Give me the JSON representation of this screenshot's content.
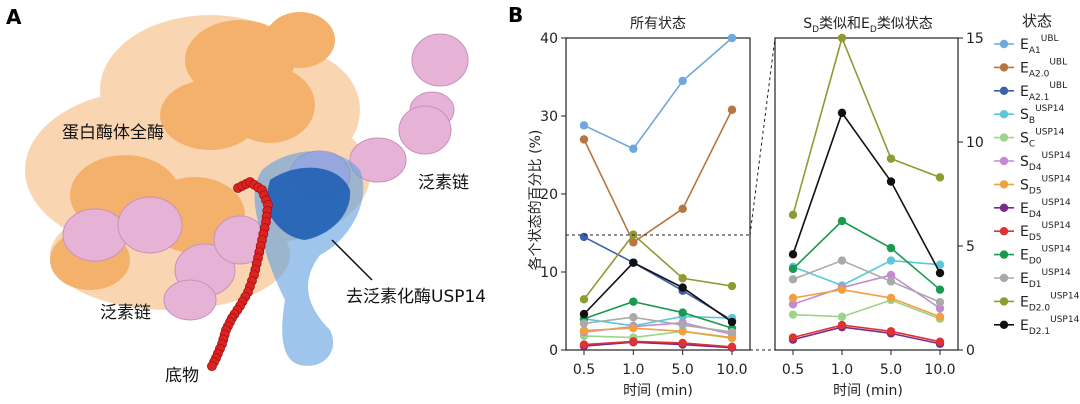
{
  "panel_a": {
    "letter": "A",
    "labels": {
      "proteasome": "蛋白酶体全酶",
      "ub_chain_right": "泛素链",
      "ub_chain_left": "泛素链",
      "usp14": "去泛素化酶USP14",
      "substrate": "底物"
    },
    "colors": {
      "proteasome": "#f2a65a",
      "ubiquitin": "#e6b3d6",
      "usp14": "#3a7fd0",
      "substrate": "#dd2222"
    }
  },
  "panel_b": {
    "letter": "B",
    "left_title": "所有状态",
    "right_title_parts": [
      "S",
      "D",
      "类似和E",
      "D",
      "类似状态"
    ],
    "ylabel": "各个状态的百分比 (%)",
    "xlabel": "时间 (min)",
    "legend_title": "状态"
  },
  "chart_data": [
    {
      "type": "line",
      "title": "所有状态",
      "xlabel": "时间 (min)",
      "ylabel": "各个状态的百分比 (%)",
      "x": [
        "0.5",
        "1.0",
        "5.0",
        "10.0"
      ],
      "ylim": [
        0,
        40
      ],
      "yticks": [
        "0",
        "10",
        "20",
        "30",
        "40"
      ],
      "series": [
        {
          "key": "EA1",
          "color": "#6fa8dc",
          "values": [
            28.8,
            25.8,
            34.5,
            40.0
          ]
        },
        {
          "key": "EA20",
          "color": "#b8763f",
          "values": [
            27.0,
            13.8,
            18.1,
            30.8
          ]
        },
        {
          "key": "EA21",
          "color": "#3d5fae",
          "values": [
            14.5,
            11.2,
            7.6,
            3.8
          ]
        },
        {
          "key": "SB",
          "color": "#5bc8d8",
          "values": [
            4.0,
            3.1,
            4.3,
            4.1
          ]
        },
        {
          "key": "SC",
          "color": "#9bd58a",
          "values": [
            1.8,
            1.6,
            2.4,
            1.5
          ]
        },
        {
          "key": "SD4",
          "color": "#c28bd0",
          "values": [
            2.3,
            3.0,
            3.5,
            2.0
          ]
        },
        {
          "key": "SD5",
          "color": "#f0a040",
          "values": [
            2.5,
            2.8,
            2.4,
            1.6
          ]
        },
        {
          "key": "ED4",
          "color": "#7a2a8a",
          "values": [
            0.5,
            1.0,
            0.7,
            0.3
          ]
        },
        {
          "key": "ED5",
          "color": "#dd3333",
          "values": [
            0.7,
            1.1,
            0.9,
            0.4
          ]
        },
        {
          "key": "ED0",
          "color": "#1a9a50",
          "values": [
            4.0,
            6.2,
            4.8,
            2.8
          ]
        },
        {
          "key": "ED1",
          "color": "#aaaaaa",
          "values": [
            3.4,
            4.2,
            3.2,
            2.3
          ]
        },
        {
          "key": "ED20",
          "color": "#8f9a32",
          "values": [
            6.5,
            14.8,
            9.2,
            8.2
          ]
        },
        {
          "key": "ED21",
          "color": "#111111",
          "values": [
            4.6,
            11.2,
            8.0,
            3.6
          ]
        }
      ]
    },
    {
      "type": "line",
      "title": "SD类似和ED类似状态",
      "xlabel": "时间 (min)",
      "x": [
        "0.5",
        "1.0",
        "5.0",
        "10.0"
      ],
      "ylim": [
        0,
        15
      ],
      "yticks": [
        "0",
        "5",
        "10",
        "15"
      ],
      "series": [
        {
          "key": "SB",
          "color": "#5bc8d8",
          "values": [
            4.0,
            3.1,
            4.3,
            4.1
          ]
        },
        {
          "key": "SC",
          "color": "#9bd58a",
          "values": [
            1.7,
            1.6,
            2.4,
            1.5
          ]
        },
        {
          "key": "SD4",
          "color": "#c28bd0",
          "values": [
            2.2,
            3.0,
            3.6,
            2.0
          ]
        },
        {
          "key": "SD5",
          "color": "#f0a040",
          "values": [
            2.5,
            2.9,
            2.5,
            1.6
          ]
        },
        {
          "key": "ED4",
          "color": "#7a2a8a",
          "values": [
            0.5,
            1.1,
            0.8,
            0.3
          ]
        },
        {
          "key": "ED5",
          "color": "#dd3333",
          "values": [
            0.6,
            1.2,
            0.9,
            0.4
          ]
        },
        {
          "key": "ED0",
          "color": "#1a9a50",
          "values": [
            3.9,
            6.2,
            4.9,
            2.9
          ]
        },
        {
          "key": "ED1",
          "color": "#aaaaaa",
          "values": [
            3.4,
            4.3,
            3.3,
            2.3
          ]
        },
        {
          "key": "ED20",
          "color": "#8f9a32",
          "values": [
            6.5,
            15.0,
            9.2,
            8.3
          ]
        },
        {
          "key": "ED21",
          "color": "#111111",
          "values": [
            4.6,
            11.4,
            8.1,
            3.7
          ]
        }
      ]
    }
  ],
  "legend": [
    {
      "key": "EA1",
      "main": "E",
      "sub": "A1",
      "sup": "UBL",
      "color": "#6fa8dc"
    },
    {
      "key": "EA20",
      "main": "E",
      "sub": "A2.0",
      "sup": "UBL",
      "color": "#b8763f"
    },
    {
      "key": "EA21",
      "main": "E",
      "sub": "A2.1",
      "sup": "UBL",
      "color": "#3d5fae"
    },
    {
      "key": "SB",
      "main": "S",
      "sub": "B",
      "sup": "USP14",
      "color": "#5bc8d8"
    },
    {
      "key": "SC",
      "main": "S",
      "sub": "C",
      "sup": "USP14",
      "color": "#9bd58a"
    },
    {
      "key": "SD4",
      "main": "S",
      "sub": "D4",
      "sup": "USP14",
      "color": "#c28bd0"
    },
    {
      "key": "SD5",
      "main": "S",
      "sub": "D5",
      "sup": "USP14",
      "color": "#f0a040"
    },
    {
      "key": "ED4",
      "main": "E",
      "sub": "D4",
      "sup": "USP14",
      "color": "#7a2a8a"
    },
    {
      "key": "ED5",
      "main": "E",
      "sub": "D5",
      "sup": "USP14",
      "color": "#dd3333"
    },
    {
      "key": "ED0",
      "main": "E",
      "sub": "D0",
      "sup": "USP14",
      "color": "#1a9a50"
    },
    {
      "key": "ED1",
      "main": "E",
      "sub": "D1",
      "sup": "USP14",
      "color": "#aaaaaa"
    },
    {
      "key": "ED20",
      "main": "E",
      "sub": "D2.0",
      "sup": "USP14",
      "color": "#8f9a32"
    },
    {
      "key": "ED21",
      "main": "E",
      "sub": "D2.1",
      "sup": "USP14",
      "color": "#111111"
    }
  ]
}
